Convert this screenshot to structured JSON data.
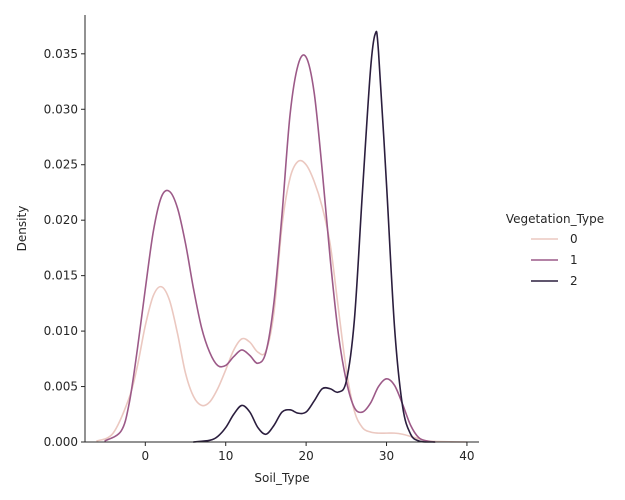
{
  "chart_data": {
    "type": "line",
    "xlabel": "Soil_Type",
    "ylabel": "Density",
    "xlim": [
      -7.5,
      41.5
    ],
    "ylim": [
      0,
      0.0385
    ],
    "xticks": [
      0,
      10,
      20,
      30,
      40
    ],
    "xtick_labels": [
      "0",
      "10",
      "20",
      "30",
      "40"
    ],
    "yticks": [
      0,
      0.005,
      0.01,
      0.015,
      0.02,
      0.025,
      0.03,
      0.035
    ],
    "ytick_labels": [
      "0.000",
      "0.005",
      "0.010",
      "0.015",
      "0.020",
      "0.025",
      "0.030",
      "0.035"
    ],
    "grid": false,
    "legend": {
      "title": "Vegetation_Type",
      "placement": "right"
    },
    "series": [
      {
        "name": "0",
        "color": "#ebc8c0",
        "x": [
          -6,
          -4,
          -2,
          -1,
          0,
          1,
          2,
          3,
          4,
          5,
          6,
          7,
          8,
          9,
          10,
          11,
          12,
          13,
          14,
          15,
          16,
          17,
          18,
          19,
          20,
          21,
          22,
          23,
          24,
          25,
          26,
          27,
          28,
          29,
          30,
          31,
          32,
          33,
          34,
          35,
          36,
          38,
          40
        ],
        "y": [
          0.0001,
          0.0008,
          0.004,
          0.0068,
          0.0105,
          0.0132,
          0.014,
          0.0128,
          0.0098,
          0.0062,
          0.0041,
          0.0033,
          0.0036,
          0.0048,
          0.0065,
          0.0083,
          0.0093,
          0.009,
          0.0081,
          0.0082,
          0.0117,
          0.0195,
          0.0238,
          0.0253,
          0.025,
          0.0235,
          0.0212,
          0.0178,
          0.0121,
          0.0065,
          0.0028,
          0.0013,
          0.0009,
          0.0008,
          0.0008,
          0.0008,
          0.0007,
          0.0005,
          0.0003,
          0.0001,
          5e-05,
          2e-05,
          0.0
        ]
      },
      {
        "name": "1",
        "color": "#9c5a88",
        "x": [
          -5,
          -3,
          -2,
          -1,
          0,
          1,
          2,
          3,
          4,
          5,
          6,
          7,
          8,
          9,
          10,
          11,
          12,
          13,
          14,
          15,
          16,
          17,
          18,
          19,
          20,
          21,
          22,
          23,
          24,
          25,
          26,
          27,
          28,
          29,
          30,
          31,
          32,
          33,
          34,
          35,
          36
        ],
        "y": [
          0.0001,
          0.001,
          0.0035,
          0.0083,
          0.0138,
          0.019,
          0.0221,
          0.0226,
          0.0211,
          0.0179,
          0.0138,
          0.0103,
          0.0081,
          0.0069,
          0.0069,
          0.0077,
          0.0083,
          0.0078,
          0.0071,
          0.0081,
          0.0126,
          0.0205,
          0.0295,
          0.034,
          0.0347,
          0.0315,
          0.0245,
          0.0165,
          0.0098,
          0.0055,
          0.0031,
          0.0027,
          0.0035,
          0.005,
          0.0057,
          0.0051,
          0.0034,
          0.0015,
          0.0004,
          0.0001,
          0.0
        ]
      },
      {
        "name": "2",
        "color": "#2b1e3e",
        "x": [
          6,
          8,
          9,
          10,
          11,
          12,
          13,
          14,
          15,
          16,
          17,
          18,
          19,
          20,
          21,
          22,
          23,
          24,
          25,
          26,
          27,
          28,
          28.6,
          29,
          30,
          31,
          32,
          33,
          34,
          35,
          36
        ],
        "y": [
          0.0,
          0.00015,
          0.0005,
          0.0013,
          0.0025,
          0.0033,
          0.0027,
          0.0013,
          0.0007,
          0.0015,
          0.0027,
          0.0029,
          0.0026,
          0.0027,
          0.0037,
          0.0048,
          0.0048,
          0.0045,
          0.0055,
          0.011,
          0.0225,
          0.0335,
          0.0368,
          0.0352,
          0.0232,
          0.0103,
          0.0032,
          0.0007,
          0.0001,
          0.0,
          0.0
        ]
      }
    ]
  }
}
